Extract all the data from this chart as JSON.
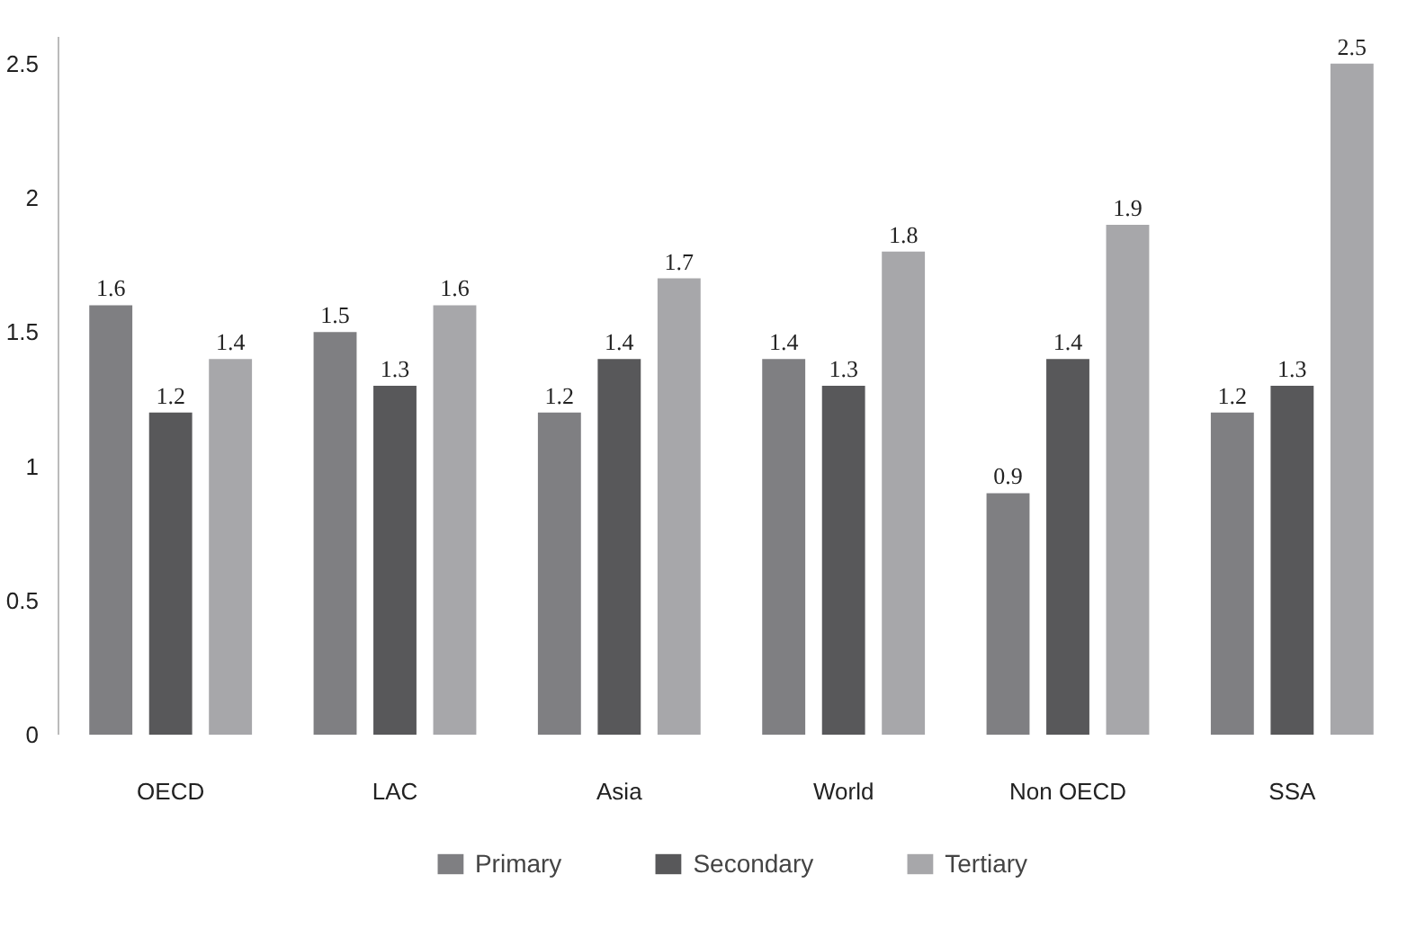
{
  "chart_data": {
    "type": "bar",
    "categories": [
      "OECD",
      "LAC",
      "Asia",
      "World",
      "Non OECD",
      "SSA"
    ],
    "series": [
      {
        "name": "Primary",
        "color": "#7f7f82",
        "values": [
          1.6,
          1.5,
          1.2,
          1.4,
          0.9,
          1.2
        ]
      },
      {
        "name": "Secondary",
        "color": "#58585a",
        "values": [
          1.2,
          1.3,
          1.4,
          1.3,
          1.4,
          1.3
        ]
      },
      {
        "name": "Tertiary",
        "color": "#a7a7aa",
        "values": [
          1.4,
          1.6,
          1.7,
          1.8,
          1.9,
          2.5
        ]
      }
    ],
    "ylim": [
      0,
      2.6
    ],
    "yticks": [
      0,
      0.5,
      1,
      1.5,
      2,
      2.5
    ],
    "data_labels": true,
    "grid": false,
    "legend": "bottom"
  }
}
